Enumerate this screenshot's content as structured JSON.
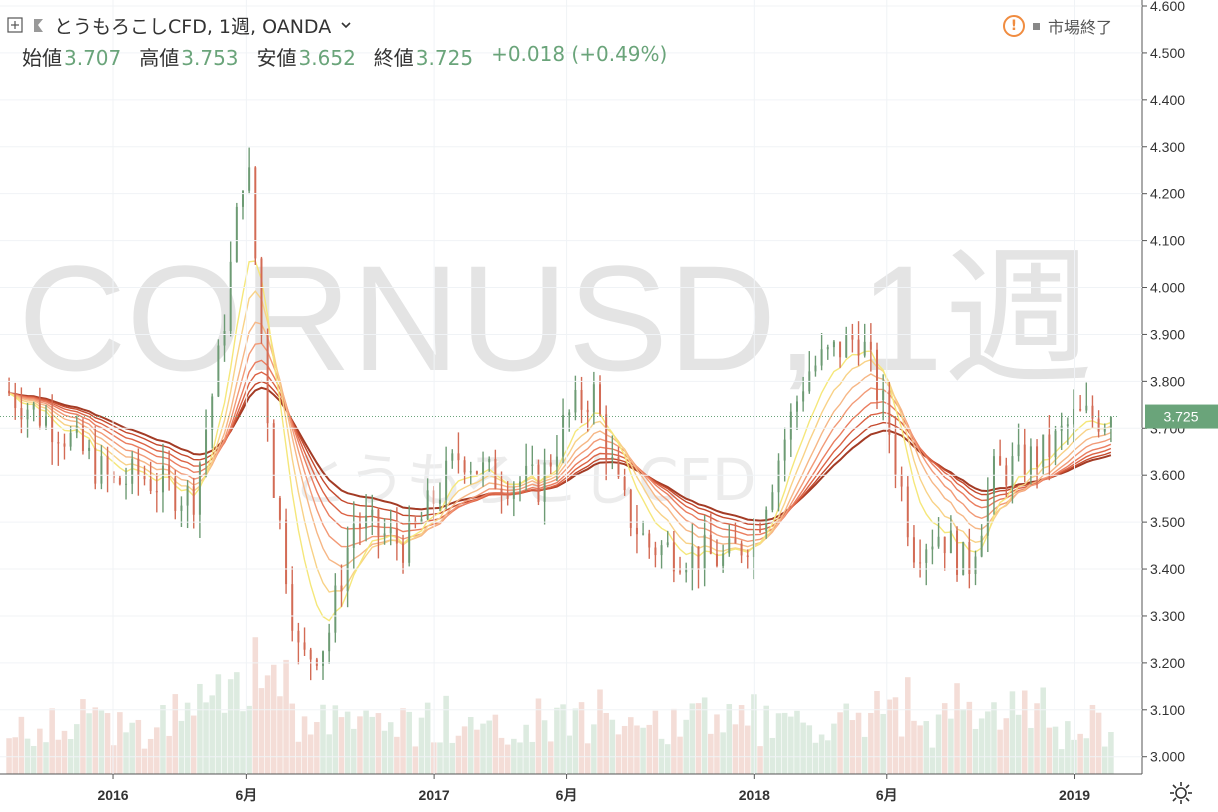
{
  "legend": {
    "title": "とうもろこしCFD, 1週, OANDA",
    "open_label": "始値",
    "open": "3.707",
    "high_label": "高値",
    "high": "3.753",
    "low_label": "安値",
    "low": "3.652",
    "close_label": "終値",
    "close": "3.725",
    "change": "+0.018 (+0.49%)"
  },
  "status": {
    "text": "市場終了",
    "warning_icon": "!"
  },
  "watermark": {
    "symbol": "CORNUSD, 1週",
    "name": "とうもろこしCFD"
  },
  "colors": {
    "up": "#6d9b74",
    "down": "#d36b55",
    "ribbon": [
      "#a33b25",
      "#c4492d",
      "#dc6345",
      "#ea7d5f",
      "#f29a77",
      "#f6b786",
      "#f8d287",
      "#f5e77a"
    ],
    "price_tag": "#6aa47a"
  },
  "chart_data": {
    "type": "candlestick",
    "y_axis_ticks": [
      "4.600",
      "4.500",
      "4.400",
      "4.300",
      "4.200",
      "4.100",
      "4.000",
      "3.900",
      "3.800",
      "3.700",
      "3.600",
      "3.500",
      "3.400",
      "3.300",
      "3.200",
      "3.100",
      "3.000"
    ],
    "ylim": [
      2.99,
      4.6
    ],
    "x_axis_labels": [
      {
        "label": "2016",
        "date": "2016-01"
      },
      {
        "label": "6月",
        "date": "2016-06"
      },
      {
        "label": "2017",
        "date": "2017-01"
      },
      {
        "label": "6月",
        "date": "2017-06"
      },
      {
        "label": "2018",
        "date": "2018-01"
      },
      {
        "label": "6月",
        "date": "2018-06"
      },
      {
        "label": "2019",
        "date": "2019-01"
      }
    ],
    "last_price": "3.725",
    "price_keypoints": [
      {
        "date": "2015-09",
        "price": 3.78
      },
      {
        "date": "2015-11",
        "price": 3.7
      },
      {
        "date": "2016-01",
        "price": 3.58
      },
      {
        "date": "2016-02",
        "price": 3.6
      },
      {
        "date": "2016-04",
        "price": 3.55
      },
      {
        "date": "2016-05",
        "price": 3.85
      },
      {
        "date": "2016-06",
        "price": 4.3
      },
      {
        "date": "2016-07",
        "price": 3.6
      },
      {
        "date": "2016-08",
        "price": 3.2
      },
      {
        "date": "2016-09",
        "price": 3.25
      },
      {
        "date": "2016-10",
        "price": 3.5
      },
      {
        "date": "2016-12",
        "price": 3.45
      },
      {
        "date": "2017-02",
        "price": 3.65
      },
      {
        "date": "2017-03",
        "price": 3.6
      },
      {
        "date": "2017-05",
        "price": 3.58
      },
      {
        "date": "2017-06",
        "price": 3.72
      },
      {
        "date": "2017-07",
        "price": 3.78
      },
      {
        "date": "2017-08",
        "price": 3.55
      },
      {
        "date": "2017-09",
        "price": 3.45
      },
      {
        "date": "2017-12",
        "price": 3.42
      },
      {
        "date": "2018-01",
        "price": 3.48
      },
      {
        "date": "2018-03",
        "price": 3.82
      },
      {
        "date": "2018-05",
        "price": 3.9
      },
      {
        "date": "2018-06",
        "price": 3.72
      },
      {
        "date": "2018-07",
        "price": 3.45
      },
      {
        "date": "2018-08",
        "price": 3.48
      },
      {
        "date": "2018-09",
        "price": 3.4
      },
      {
        "date": "2018-10",
        "price": 3.6
      },
      {
        "date": "2018-12",
        "price": 3.65
      },
      {
        "date": "2019-01",
        "price": 3.72
      },
      {
        "date": "2019-02",
        "price": 3.725
      }
    ],
    "moving_average_ribbon": "8 exponential moving averages",
    "volume": "histogram at bottom, green/red by candle direction"
  }
}
